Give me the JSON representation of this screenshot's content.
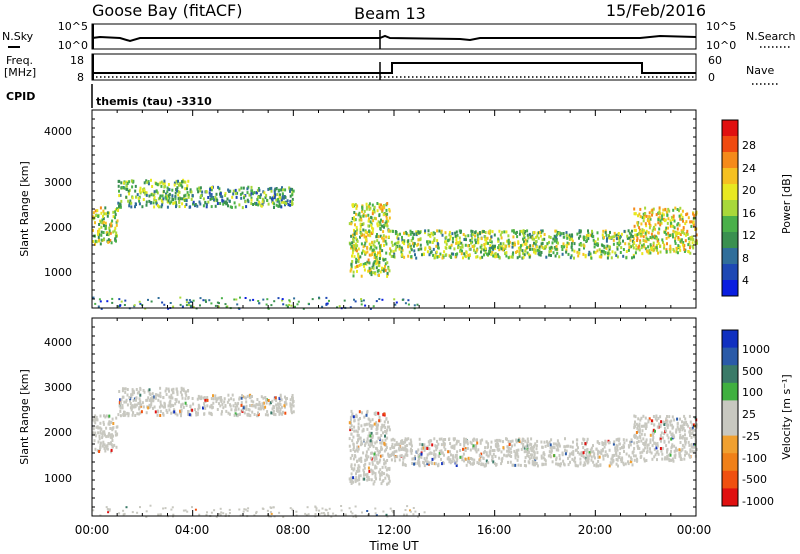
{
  "header": {
    "station": "Goose Bay (fitACF)",
    "beam": "Beam 13",
    "date": "15/Feb/2016"
  },
  "top_panel": {
    "left_label": "N.Sky",
    "right_label": "N.Search",
    "left_ticks": [
      "10^5",
      "10^0"
    ],
    "right_ticks": [
      "10^5",
      "10^0"
    ]
  },
  "freq_panel": {
    "left_label_1": "Freq.",
    "left_label_2": "[MHz]",
    "right_label": "Nave",
    "left_ticks": [
      "18",
      "8"
    ],
    "right_ticks": [
      "60",
      "0"
    ]
  },
  "cpid": {
    "label": "CPID",
    "text": "themis (tau) -3310"
  },
  "xaxis": {
    "label": "Time UT",
    "ticks": [
      "00:00",
      "04:00",
      "08:00",
      "12:00",
      "16:00",
      "20:00",
      "00:00"
    ]
  },
  "power_panel": {
    "ylabel": "Slant Range [km]",
    "yticks": [
      "4000",
      "3000",
      "2000",
      "1000"
    ],
    "cbar_label": "Power [dB]",
    "cbar_ticks": [
      "28",
      "24",
      "20",
      "16",
      "12",
      "8",
      "4"
    ],
    "cbar_colors": [
      "#e01010",
      "#f04a10",
      "#f58a1a",
      "#f5c020",
      "#e8e820",
      "#a8d83a",
      "#4ab04a",
      "#3a9050",
      "#306e9a",
      "#1e48b4",
      "#0a1ee0"
    ]
  },
  "velocity_panel": {
    "ylabel": "Slant Range [km]",
    "yticks": [
      "4000",
      "3000",
      "2000",
      "1000"
    ],
    "cbar_label": "Velocity [m s⁻¹]",
    "cbar_ticks": [
      "1000",
      "500",
      "100",
      "25",
      "-25",
      "-100",
      "-500",
      "-1000"
    ],
    "cbar_colors": [
      "#1030c0",
      "#2a5aa8",
      "#3a7a68",
      "#40b040",
      "#c8c8c0",
      "#c8c8c0",
      "#f0a030",
      "#f08018",
      "#f05010",
      "#e01010"
    ]
  },
  "chart_data": [
    {
      "type": "heatmap",
      "title": "Power",
      "xlabel": "Time UT",
      "ylabel": "Slant Range [km]",
      "xlim_hours": [
        0,
        24
      ],
      "ylim": [
        180,
        4500
      ],
      "colorbar": {
        "label": "Power [dB]",
        "range": [
          0,
          30
        ]
      },
      "bands": [
        {
          "t0": 0.0,
          "t1": 1.0,
          "r0": 1600,
          "r1": 2400,
          "p": 16
        },
        {
          "t0": 1.0,
          "t1": 3.8,
          "r0": 2400,
          "r1": 3000,
          "p": 12
        },
        {
          "t0": 3.8,
          "t1": 8.0,
          "r0": 2400,
          "r1": 2850,
          "p": 10
        },
        {
          "t0": 10.2,
          "t1": 11.8,
          "r0": 900,
          "r1": 2500,
          "p": 16
        },
        {
          "t0": 11.8,
          "t1": 21.5,
          "r0": 1300,
          "r1": 1900,
          "p": 14
        },
        {
          "t0": 21.5,
          "t1": 24.0,
          "r0": 1400,
          "r1": 2400,
          "p": 18
        }
      ]
    },
    {
      "type": "heatmap",
      "title": "Velocity",
      "xlabel": "Time UT",
      "ylabel": "Slant Range [km]",
      "xlim_hours": [
        0,
        24
      ],
      "ylim": [
        180,
        4500
      ],
      "colorbar": {
        "label": "Velocity [m s⁻¹]",
        "range": [
          -1000,
          1000
        ]
      },
      "bands": [
        {
          "t0": 0.0,
          "t1": 1.0,
          "r0": 1600,
          "r1": 2400,
          "v": 0
        },
        {
          "t0": 1.0,
          "t1": 3.8,
          "r0": 2400,
          "r1": 3000,
          "v": 0
        },
        {
          "t0": 3.8,
          "t1": 8.0,
          "r0": 2400,
          "r1": 2850,
          "v": 0
        },
        {
          "t0": 10.2,
          "t1": 11.8,
          "r0": 900,
          "r1": 2500,
          "v": 0
        },
        {
          "t0": 11.8,
          "t1": 21.5,
          "r0": 1300,
          "r1": 1900,
          "v": 0
        },
        {
          "t0": 21.5,
          "t1": 24.0,
          "r0": 1400,
          "r1": 2400,
          "v": -100
        }
      ]
    }
  ]
}
